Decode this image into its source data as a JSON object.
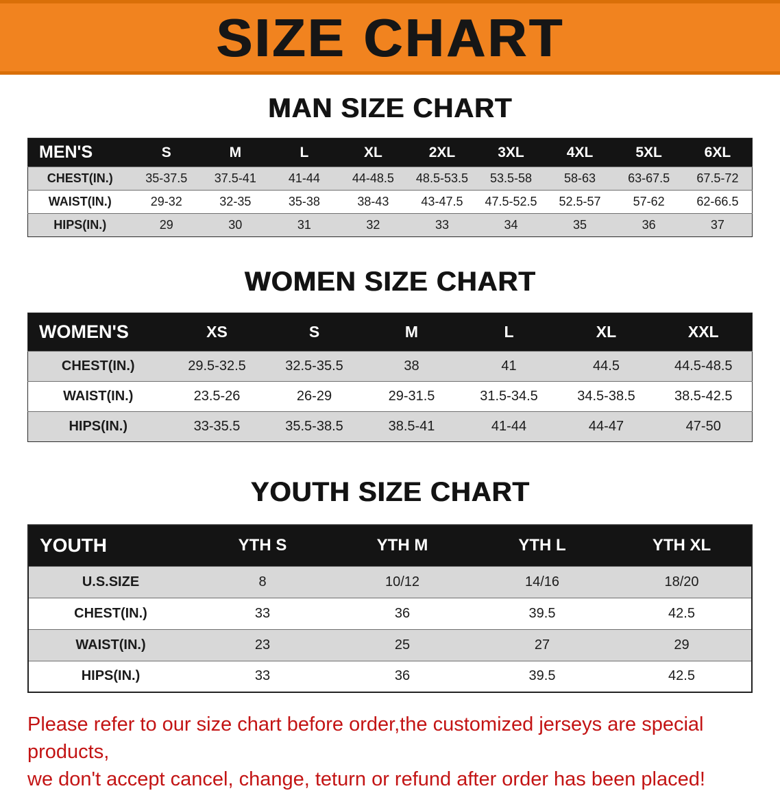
{
  "banner": {
    "title": "SIZE CHART"
  },
  "colors": {
    "banner-bg": "#f1831f",
    "banner-edge": "#d96f08",
    "title-color": "#161616",
    "table-header-bg": "#141414",
    "table-header-text": "#ffffff",
    "row-alt-bg": "#d8d8d8",
    "disclaimer-color": "#c31414"
  },
  "sections": {
    "men": {
      "heading": "MAN SIZE CHART",
      "table": {
        "header": [
          "MEN'S",
          "S",
          "M",
          "L",
          "XL",
          "2XL",
          "3XL",
          "4XL",
          "5XL",
          "6XL"
        ],
        "rows": [
          [
            "CHEST(IN.)",
            "35-37.5",
            "37.5-41",
            "41-44",
            "44-48.5",
            "48.5-53.5",
            "53.5-58",
            "58-63",
            "63-67.5",
            "67.5-72"
          ],
          [
            "WAIST(IN.)",
            "29-32",
            "32-35",
            "35-38",
            "38-43",
            "43-47.5",
            "47.5-52.5",
            "52.5-57",
            "57-62",
            "62-66.5"
          ],
          [
            "HIPS(IN.)",
            "29",
            "30",
            "31",
            "32",
            "33",
            "34",
            "35",
            "36",
            "37"
          ]
        ]
      }
    },
    "women": {
      "heading": "WOMEN SIZE CHART",
      "table": {
        "header": [
          "WOMEN'S",
          "XS",
          "S",
          "M",
          "L",
          "XL",
          "XXL"
        ],
        "rows": [
          [
            "CHEST(IN.)",
            "29.5-32.5",
            "32.5-35.5",
            "38",
            "41",
            "44.5",
            "44.5-48.5"
          ],
          [
            "WAIST(IN.)",
            "23.5-26",
            "26-29",
            "29-31.5",
            "31.5-34.5",
            "34.5-38.5",
            "38.5-42.5"
          ],
          [
            "HIPS(IN.)",
            "33-35.5",
            "35.5-38.5",
            "38.5-41",
            "41-44",
            "44-47",
            "47-50"
          ]
        ]
      }
    },
    "youth": {
      "heading": "YOUTH SIZE CHART",
      "table": {
        "header": [
          "YOUTH",
          "YTH S",
          "YTH M",
          "YTH L",
          "YTH XL"
        ],
        "rows": [
          [
            "U.S.SIZE",
            "8",
            "10/12",
            "14/16",
            "18/20"
          ],
          [
            "CHEST(IN.)",
            "33",
            "36",
            "39.5",
            "42.5"
          ],
          [
            "WAIST(IN.)",
            "23",
            "25",
            "27",
            "29"
          ],
          [
            "HIPS(IN.)",
            "33",
            "36",
            "39.5",
            "42.5"
          ]
        ]
      }
    }
  },
  "footer": {
    "line1": "Please refer to our size chart before order,the customized jerseys are special products,",
    "line2": "we don't accept cancel, change, teturn or refund after order has been placed!"
  }
}
